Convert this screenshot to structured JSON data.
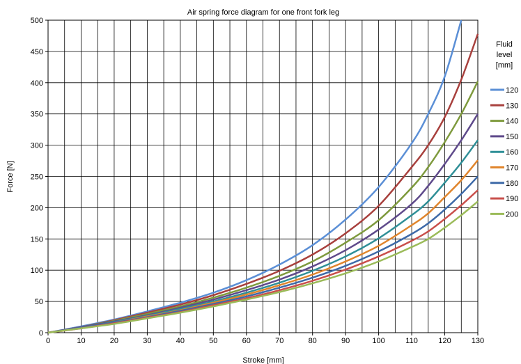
{
  "chart_data": {
    "type": "line",
    "title": "Air spring force diagram for one front fork leg",
    "xlabel": "Stroke [mm]",
    "ylabel": "Force [N]",
    "xlim": [
      0,
      130
    ],
    "ylim": [
      0,
      500
    ],
    "x_ticks": [
      0,
      10,
      20,
      30,
      40,
      50,
      60,
      70,
      80,
      90,
      100,
      110,
      120,
      130
    ],
    "y_ticks": [
      0,
      50,
      100,
      150,
      200,
      250,
      300,
      350,
      400,
      450,
      500
    ],
    "x_grid_step": 5,
    "grid": true,
    "legend": {
      "title_lines": [
        "Fluid",
        "level",
        "[mm]"
      ],
      "placement": "right"
    },
    "x": [
      0,
      10,
      20,
      30,
      40,
      50,
      60,
      70,
      80,
      90,
      100,
      110,
      115,
      120,
      125,
      130
    ],
    "series": [
      {
        "name": "120",
        "color": "#5b8fd6",
        "values": [
          0,
          10,
          21,
          34,
          48,
          64,
          84,
          109,
          140,
          181,
          233,
          303,
          350,
          410,
          500,
          null
        ]
      },
      {
        "name": "130",
        "color": "#a8403d",
        "values": [
          0,
          9,
          20,
          32,
          45,
          60,
          78,
          99,
          125,
          159,
          203,
          265,
          300,
          345,
          405,
          478
        ]
      },
      {
        "name": "140",
        "color": "#7e9a3d",
        "values": [
          0,
          9,
          19,
          30,
          42,
          56,
          72,
          91,
          114,
          144,
          180,
          232,
          265,
          305,
          350,
          402
        ]
      },
      {
        "name": "150",
        "color": "#5f4a8b",
        "values": [
          0,
          9,
          18,
          28,
          40,
          53,
          68,
          85,
          106,
          132,
          165,
          206,
          235,
          270,
          308,
          350
        ]
      },
      {
        "name": "160",
        "color": "#2f8f97",
        "values": [
          0,
          8,
          17,
          27,
          38,
          50,
          64,
          80,
          99,
          122,
          151,
          188,
          210,
          240,
          272,
          308
        ]
      },
      {
        "name": "170",
        "color": "#e0852c",
        "values": [
          0,
          8,
          16,
          26,
          36,
          48,
          61,
          76,
          93,
          114,
          139,
          172,
          191,
          217,
          244,
          276
        ]
      },
      {
        "name": "180",
        "color": "#3e6aa8",
        "values": [
          0,
          8,
          16,
          25,
          35,
          46,
          58,
          72,
          88,
          107,
          130,
          158,
          175,
          197,
          222,
          250
        ]
      },
      {
        "name": "190",
        "color": "#c94f4b",
        "values": [
          0,
          7,
          15,
          24,
          33,
          44,
          55,
          68,
          83,
          101,
          122,
          147,
          162,
          182,
          204,
          228
        ]
      },
      {
        "name": "200",
        "color": "#9bbb59",
        "values": [
          0,
          7,
          14,
          23,
          32,
          42,
          53,
          65,
          79,
          95,
          114,
          137,
          150,
          168,
          188,
          210
        ]
      }
    ]
  }
}
